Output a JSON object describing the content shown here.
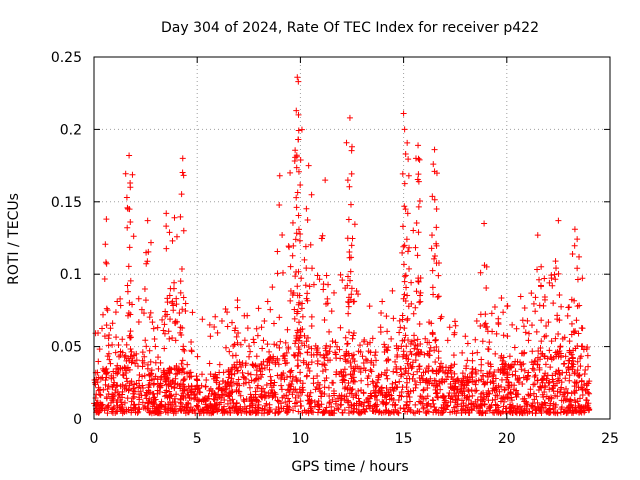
{
  "chart_data": {
    "type": "scatter",
    "title": "Day 304 of 2024, Rate Of TEC Index for receiver p422",
    "xlabel": "GPS time / hours",
    "ylabel": "ROTI / TECUs",
    "xlim": [
      0,
      25
    ],
    "ylim": [
      0,
      0.25
    ],
    "xticks": [
      0,
      5,
      10,
      15,
      20,
      25
    ],
    "xtick_labels": [
      "0",
      "5",
      "10",
      "15",
      "20",
      "25"
    ],
    "yticks": [
      0,
      0.05,
      0.1,
      0.15,
      0.2,
      0.25
    ],
    "ytick_labels": [
      "0",
      "0.05",
      "0.1",
      "0.15",
      "0.2",
      "0.25"
    ],
    "grid": true,
    "marker": "+",
    "color": "#ff0000",
    "x_range_of_data": [
      0,
      24
    ],
    "series": [
      {
        "name": "ROTI",
        "hourly_envelope": {
          "hours": [
            0,
            1,
            2,
            3,
            4,
            5,
            6,
            7,
            8,
            9,
            10,
            11,
            12,
            13,
            14,
            15,
            16,
            17,
            18,
            19,
            20,
            21,
            22,
            23,
            24
          ],
          "typical_max": [
            0.06,
            0.08,
            0.1,
            0.07,
            0.1,
            0.08,
            0.07,
            0.09,
            0.08,
            0.1,
            0.12,
            0.1,
            0.11,
            0.09,
            0.09,
            0.1,
            0.1,
            0.08,
            0.06,
            0.08,
            0.09,
            0.09,
            0.1,
            0.1,
            0.06
          ],
          "typical_median": [
            0.02,
            0.025,
            0.03,
            0.02,
            0.025,
            0.02,
            0.02,
            0.025,
            0.025,
            0.03,
            0.04,
            0.03,
            0.035,
            0.03,
            0.03,
            0.035,
            0.035,
            0.025,
            0.02,
            0.025,
            0.025,
            0.025,
            0.03,
            0.03,
            0.02
          ],
          "minimum": [
            0.004,
            0.004,
            0.004,
            0.004,
            0.004,
            0.004,
            0.004,
            0.004,
            0.004,
            0.004,
            0.004,
            0.004,
            0.004,
            0.004,
            0.004,
            0.004,
            0.004,
            0.004,
            0.004,
            0.004,
            0.004,
            0.004,
            0.004,
            0.004,
            0.004
          ]
        },
        "peaks": [
          {
            "x": 0.6,
            "y": 0.138
          },
          {
            "x": 1.7,
            "y": 0.182
          },
          {
            "x": 1.75,
            "y": 0.163
          },
          {
            "x": 2.6,
            "y": 0.137
          },
          {
            "x": 3.5,
            "y": 0.142
          },
          {
            "x": 3.9,
            "y": 0.139
          },
          {
            "x": 4.3,
            "y": 0.18
          },
          {
            "x": 4.35,
            "y": 0.13
          },
          {
            "x": 9.0,
            "y": 0.168
          },
          {
            "x": 9.5,
            "y": 0.17
          },
          {
            "x": 9.85,
            "y": 0.236
          },
          {
            "x": 9.9,
            "y": 0.233
          },
          {
            "x": 9.8,
            "y": 0.213
          },
          {
            "x": 9.9,
            "y": 0.193
          },
          {
            "x": 10.4,
            "y": 0.175
          },
          {
            "x": 11.2,
            "y": 0.165
          },
          {
            "x": 12.4,
            "y": 0.208
          },
          {
            "x": 12.5,
            "y": 0.188
          },
          {
            "x": 12.3,
            "y": 0.165
          },
          {
            "x": 15.0,
            "y": 0.211
          },
          {
            "x": 15.05,
            "y": 0.2
          },
          {
            "x": 15.1,
            "y": 0.183
          },
          {
            "x": 15.7,
            "y": 0.189
          },
          {
            "x": 15.6,
            "y": 0.18
          },
          {
            "x": 16.5,
            "y": 0.186
          },
          {
            "x": 16.5,
            "y": 0.171
          },
          {
            "x": 16.6,
            "y": 0.145
          },
          {
            "x": 18.9,
            "y": 0.135
          },
          {
            "x": 21.5,
            "y": 0.127
          },
          {
            "x": 22.5,
            "y": 0.137
          },
          {
            "x": 23.3,
            "y": 0.131
          },
          {
            "x": 23.5,
            "y": 0.112
          }
        ]
      }
    ]
  }
}
